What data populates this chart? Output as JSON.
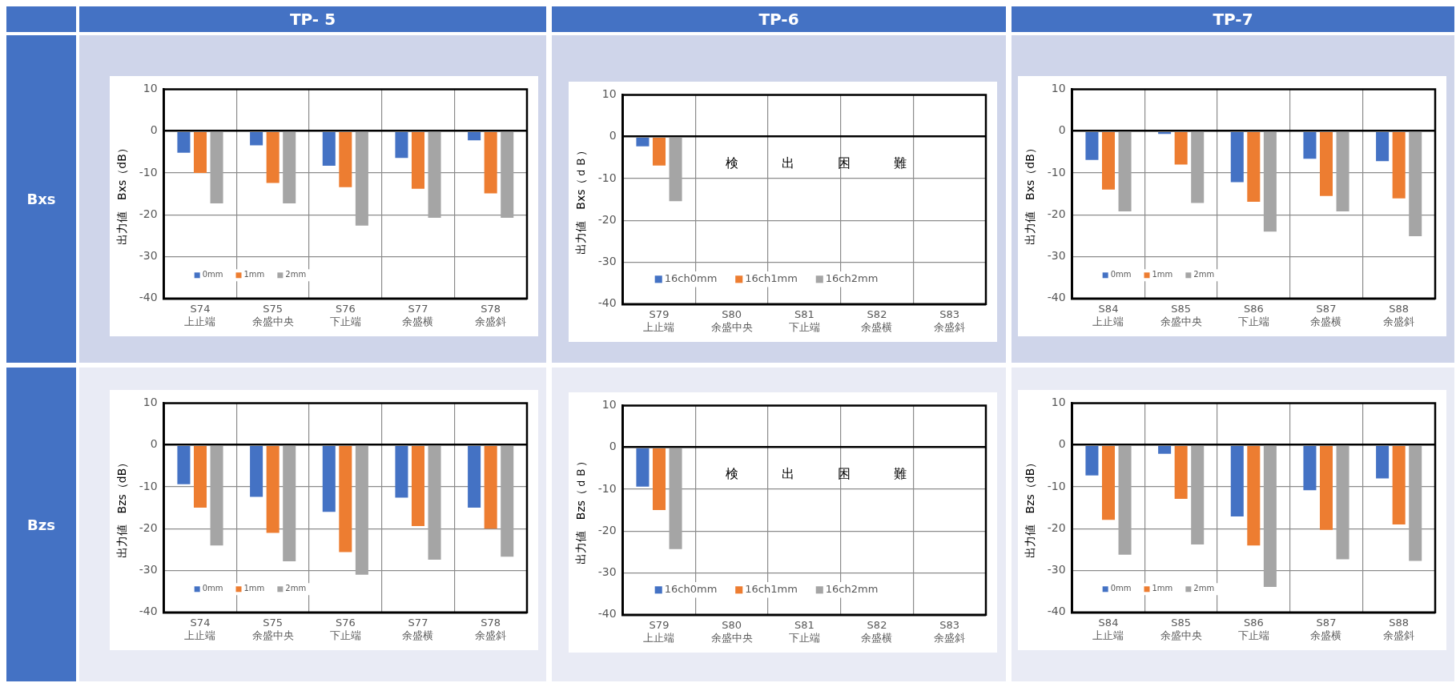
{
  "chart_data": [
    {
      "type": "other",
      "annotations": [
        "TP- 5",
        "TP-6",
        "TP-7",
        "Bxs",
        "Bzs"
      ]
    },
    {
      "type": "bar",
      "ylabel": "出力値　Bxs（dB）",
      "categories": [
        "S74\n上止端",
        "S75\n余盛中央",
        "S76\n下止端",
        "S77\n余盛横",
        "S78\n余盛斜"
      ],
      "ylim": [
        -40,
        10
      ],
      "yticks": [
        -40,
        -30,
        -20,
        -10,
        0,
        10
      ],
      "grid": true,
      "legend": "bottom left",
      "series": [
        {
          "name": "0mm",
          "color": "#4472c4",
          "values": [
            -5.2,
            -3.4,
            -8.3,
            -6.4,
            -2.2
          ]
        },
        {
          "name": "1mm",
          "color": "#ed7d31",
          "values": [
            -10,
            -12.4,
            -13.4,
            -13.8,
            -14.9
          ]
        },
        {
          "name": "2mm",
          "color": "#a5a5a5",
          "values": [
            -17.3,
            -17.3,
            -22.6,
            -20.7,
            -20.7
          ]
        }
      ]
    },
    {
      "type": "bar",
      "ylabel": "出力値　Bxs（ｄＢ）",
      "categories": [
        "S79\n上止端",
        "S80\n余盛中央",
        "S81\n下止端",
        "S82\n余盛横",
        "S83\n余盛斜"
      ],
      "ylim": [
        -40,
        10
      ],
      "yticks": [
        -40,
        -30,
        -20,
        -10,
        0,
        10
      ],
      "grid": true,
      "legend": "bottom left",
      "annotations": [
        "検出困難"
      ],
      "series": [
        {
          "name": "16ch0mm",
          "color": "#4472c4",
          "values": [
            -2.3,
            null,
            null,
            null,
            null
          ]
        },
        {
          "name": "16ch1mm",
          "color": "#ed7d31",
          "values": [
            -6.9,
            null,
            null,
            null,
            null
          ]
        },
        {
          "name": "16ch2mm",
          "color": "#a5a5a5",
          "values": [
            -15.4,
            null,
            null,
            null,
            null
          ]
        }
      ]
    },
    {
      "type": "bar",
      "ylabel": "出力値　Bxs（dB）",
      "categories": [
        "S84\n上止端",
        "S85\n余盛中央",
        "S86\n下止端",
        "S87\n余盛横",
        "S88\n余盛斜"
      ],
      "ylim": [
        -40,
        10
      ],
      "yticks": [
        -40,
        -30,
        -20,
        -10,
        0,
        10
      ],
      "grid": true,
      "legend": "bottom left",
      "series": [
        {
          "name": "0mm",
          "color": "#4472c4",
          "values": [
            -6.9,
            -0.7,
            -12.2,
            -6.6,
            -7.2
          ]
        },
        {
          "name": "1mm",
          "color": "#ed7d31",
          "values": [
            -14,
            -8,
            -16.9,
            -15.5,
            -16.1
          ]
        },
        {
          "name": "2mm",
          "color": "#a5a5a5",
          "values": [
            -19.2,
            -17.2,
            -24,
            -19.2,
            -25.1
          ]
        }
      ]
    },
    {
      "type": "bar",
      "ylabel": "出力値　Bzs（dB）",
      "categories": [
        "S74\n上止端",
        "S75\n余盛中央",
        "S76\n下止端",
        "S77\n余盛横",
        "S78\n余盛斜"
      ],
      "ylim": [
        -40,
        10
      ],
      "yticks": [
        -40,
        -30,
        -20,
        -10,
        0,
        10
      ],
      "grid": true,
      "legend": "bottom left",
      "series": [
        {
          "name": "0mm",
          "color": "#4472c4",
          "values": [
            -9.4,
            -12.4,
            -16,
            -12.6,
            -15
          ]
        },
        {
          "name": "1mm",
          "color": "#ed7d31",
          "values": [
            -15,
            -21,
            -25.6,
            -19.4,
            -20
          ]
        },
        {
          "name": "2mm",
          "color": "#a5a5a5",
          "values": [
            -24,
            -27.8,
            -31,
            -27.4,
            -26.7
          ]
        }
      ]
    },
    {
      "type": "bar",
      "ylabel": "出力値　Bzs（ｄＢ）",
      "categories": [
        "S79\n上止端",
        "S80\n余盛中央",
        "S81\n下止端",
        "S82\n余盛横",
        "S83\n余盛斜"
      ],
      "ylim": [
        -40,
        10
      ],
      "yticks": [
        -40,
        -30,
        -20,
        -10,
        0,
        10
      ],
      "grid": true,
      "legend": "bottom left",
      "annotations": [
        "検出困難"
      ],
      "series": [
        {
          "name": "16ch0mm",
          "color": "#4472c4",
          "values": [
            -9.4,
            null,
            null,
            null,
            null
          ]
        },
        {
          "name": "16ch1mm",
          "color": "#ed7d31",
          "values": [
            -15,
            null,
            null,
            null,
            null
          ]
        },
        {
          "name": "16ch2mm",
          "color": "#a5a5a5",
          "values": [
            -24.3,
            null,
            null,
            null,
            null
          ]
        }
      ]
    },
    {
      "type": "bar",
      "ylabel": "出力値　Bzs（dB）",
      "categories": [
        "S84\n上止端",
        "S85\n余盛中央",
        "S86\n下止端",
        "S87\n余盛横",
        "S88\n余盛斜"
      ],
      "ylim": [
        -40,
        10
      ],
      "yticks": [
        -40,
        -30,
        -20,
        -10,
        0,
        10
      ],
      "grid": true,
      "legend": "bottom left",
      "series": [
        {
          "name": "0mm",
          "color": "#4472c4",
          "values": [
            -7.3,
            -2.1,
            -17.1,
            -10.8,
            -8
          ]
        },
        {
          "name": "1mm",
          "color": "#ed7d31",
          "values": [
            -17.9,
            -12.9,
            -24,
            -20.3,
            -19
          ]
        },
        {
          "name": "2mm",
          "color": "#a5a5a5",
          "values": [
            -26.2,
            -23.8,
            -33.9,
            -27.3,
            -27.7
          ]
        }
      ]
    }
  ]
}
